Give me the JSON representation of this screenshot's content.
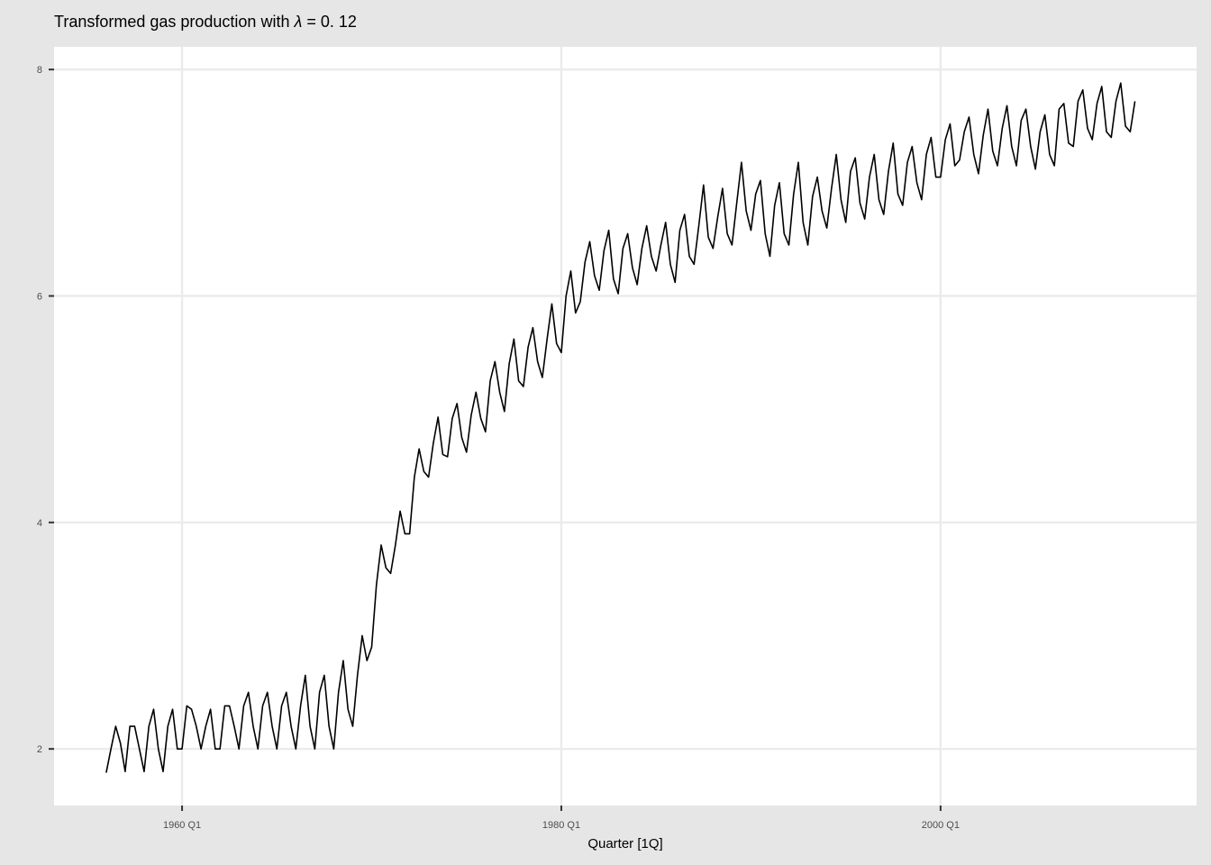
{
  "chart_data": {
    "type": "line",
    "title_prefix": "Transformed gas production with ",
    "title_lambda": "λ",
    "title_suffix": " = 0. 12",
    "xlabel": "Quarter [1Q]",
    "ylabel": "",
    "x_ticks": [
      {
        "label": "1960 Q1",
        "value": 1960.0
      },
      {
        "label": "1980 Q1",
        "value": 1980.0
      },
      {
        "label": "2000 Q1",
        "value": 2000.0
      }
    ],
    "y_ticks": [
      {
        "label": "2",
        "value": 2
      },
      {
        "label": "4",
        "value": 4
      },
      {
        "label": "6",
        "value": 6
      },
      {
        "label": "8",
        "value": 8
      }
    ],
    "xlim": [
      1953.25,
      2013.5
    ],
    "ylim": [
      1.5,
      8.2
    ],
    "grid": true,
    "line_color": "#000000",
    "series": [
      {
        "x_start": 1956.0,
        "x_step": 0.25,
        "values": [
          1.79,
          2.0,
          2.2,
          2.05,
          1.8,
          2.2,
          2.2,
          2.0,
          1.8,
          2.2,
          2.35,
          2.0,
          1.8,
          2.2,
          2.35,
          2.0,
          2.0,
          2.38,
          2.35,
          2.2,
          2.0,
          2.2,
          2.35,
          2.0,
          2.0,
          2.38,
          2.38,
          2.2,
          2.0,
          2.38,
          2.5,
          2.2,
          2.0,
          2.38,
          2.5,
          2.2,
          2.0,
          2.38,
          2.5,
          2.2,
          2.0,
          2.38,
          2.65,
          2.2,
          2.0,
          2.5,
          2.65,
          2.2,
          2.0,
          2.5,
          2.78,
          2.35,
          2.2,
          2.65,
          3.0,
          2.78,
          2.9,
          3.45,
          3.8,
          3.6,
          3.55,
          3.8,
          4.1,
          3.9,
          3.9,
          4.4,
          4.65,
          4.45,
          4.4,
          4.7,
          4.93,
          4.6,
          4.58,
          4.92,
          5.05,
          4.75,
          4.62,
          4.95,
          5.15,
          4.92,
          4.8,
          5.25,
          5.42,
          5.15,
          4.98,
          5.4,
          5.62,
          5.25,
          5.2,
          5.55,
          5.72,
          5.42,
          5.28,
          5.62,
          5.93,
          5.58,
          5.5,
          6.0,
          6.22,
          5.85,
          5.95,
          6.3,
          6.48,
          6.18,
          6.05,
          6.4,
          6.58,
          6.15,
          6.02,
          6.42,
          6.55,
          6.25,
          6.1,
          6.42,
          6.62,
          6.35,
          6.22,
          6.45,
          6.65,
          6.28,
          6.12,
          6.58,
          6.72,
          6.35,
          6.28,
          6.62,
          6.98,
          6.52,
          6.42,
          6.7,
          6.95,
          6.55,
          6.45,
          6.82,
          7.18,
          6.75,
          6.58,
          6.9,
          7.02,
          6.55,
          6.35,
          6.8,
          7.0,
          6.55,
          6.45,
          6.9,
          7.18,
          6.65,
          6.45,
          6.88,
          7.05,
          6.75,
          6.6,
          6.95,
          7.25,
          6.85,
          6.65,
          7.1,
          7.22,
          6.82,
          6.68,
          7.05,
          7.25,
          6.85,
          6.72,
          7.1,
          7.35,
          6.9,
          6.8,
          7.18,
          7.32,
          7.0,
          6.85,
          7.25,
          7.4,
          7.05,
          7.05,
          7.38,
          7.52,
          7.15,
          7.2,
          7.45,
          7.58,
          7.25,
          7.08,
          7.42,
          7.65,
          7.28,
          7.15,
          7.48,
          7.68,
          7.32,
          7.15,
          7.55,
          7.65,
          7.32,
          7.12,
          7.45,
          7.6,
          7.25,
          7.15,
          7.65,
          7.7,
          7.35,
          7.32,
          7.72,
          7.82,
          7.48,
          7.38,
          7.7,
          7.85,
          7.45,
          7.4,
          7.72,
          7.88,
          7.5,
          7.45,
          7.72
        ]
      }
    ]
  }
}
